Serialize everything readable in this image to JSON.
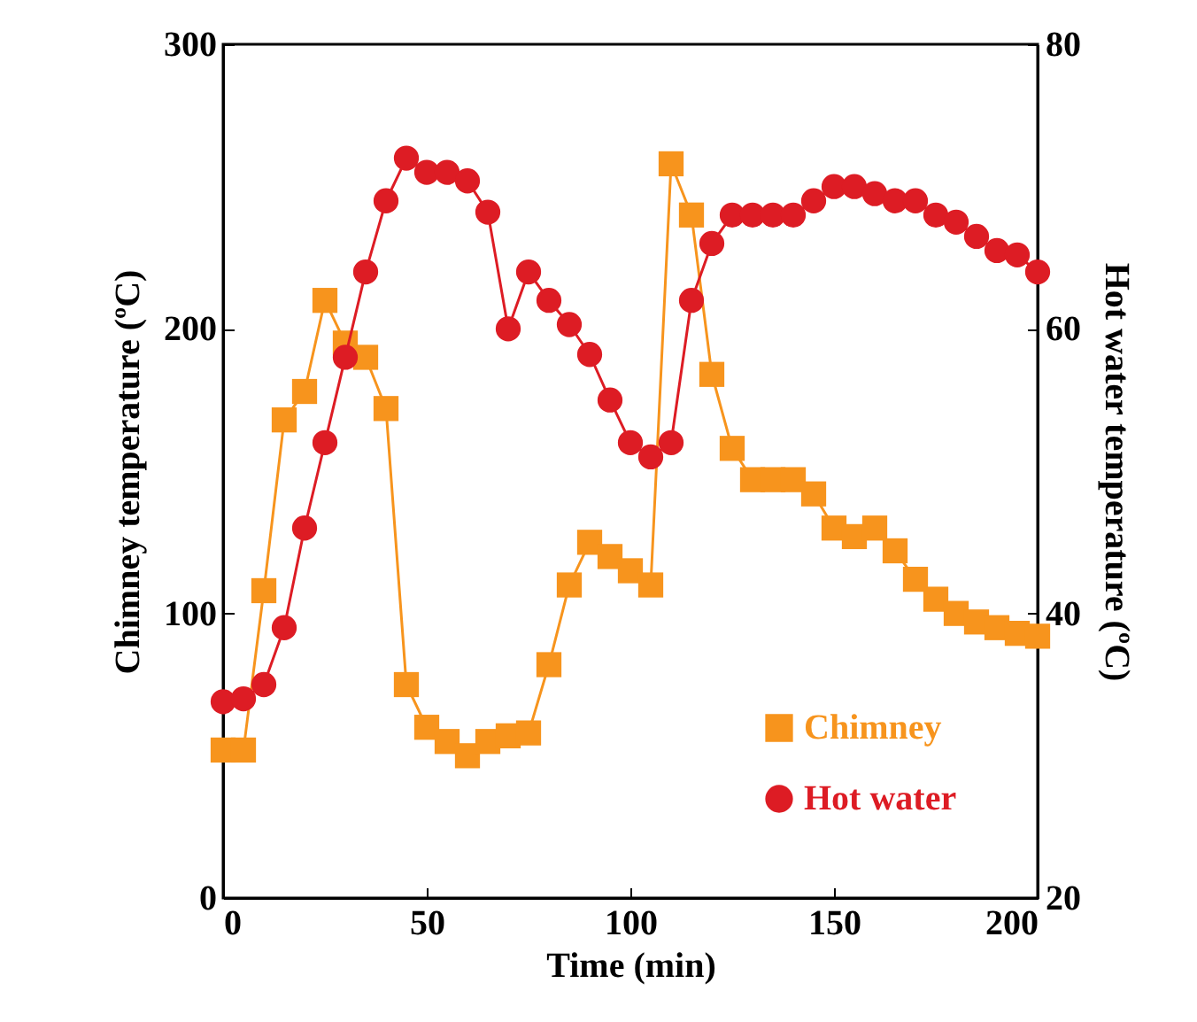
{
  "chart_data": {
    "type": "line",
    "xlabel": "Time (min)",
    "ylabel": "Chimney temperature (ºC)",
    "y2label": "Hot water temperature (ºC)",
    "x": [
      0,
      5,
      10,
      15,
      20,
      25,
      30,
      35,
      40,
      45,
      50,
      55,
      60,
      65,
      70,
      75,
      80,
      85,
      90,
      95,
      100,
      105,
      110,
      115,
      120,
      125,
      130,
      135,
      140,
      145,
      150,
      155,
      160,
      165,
      170,
      175,
      180,
      185,
      190,
      195,
      200
    ],
    "series": [
      {
        "name": "Chimney",
        "color": "#f7941d",
        "marker": "square",
        "values": [
          52,
          52,
          108,
          168,
          178,
          210,
          195,
          190,
          172,
          75,
          60,
          55,
          50,
          55,
          57,
          58,
          82,
          110,
          125,
          120,
          115,
          110,
          258,
          240,
          184,
          158,
          147,
          147,
          147,
          142,
          130,
          127,
          130,
          122,
          112,
          105,
          100,
          97,
          95,
          93,
          92
        ]
      },
      {
        "name": "Hot water",
        "color": "#dd1c24",
        "marker": "circle",
        "axis": "y2",
        "values": [
          33.8,
          34,
          35,
          39,
          46,
          52,
          58,
          64,
          69,
          72,
          71,
          71,
          70.4,
          68.2,
          60,
          64,
          62,
          60.3,
          58.2,
          55,
          52,
          51,
          52,
          62,
          66,
          68,
          68,
          68,
          68,
          69,
          70,
          70,
          69.5,
          69,
          69,
          68,
          67.5,
          66.5,
          65.5,
          65.2,
          64
        ]
      }
    ],
    "xlim": [
      0,
      200
    ],
    "xticks": [
      0,
      50,
      100,
      150,
      200
    ],
    "ylim": [
      0,
      300
    ],
    "yticks": [
      0,
      100,
      200,
      300
    ],
    "y2lim": [
      20,
      80
    ],
    "y2ticks": [
      20,
      40,
      60,
      80
    ],
    "grid": false,
    "legend": "bottom right",
    "line_style": "solid"
  }
}
